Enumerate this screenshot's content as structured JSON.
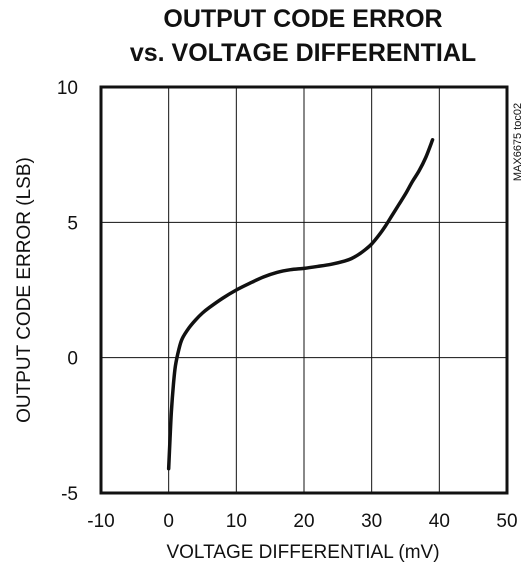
{
  "chart_data": {
    "type": "line",
    "title": [
      "OUTPUT CODE ERROR",
      "vs. VOLTAGE DIFFERENTIAL"
    ],
    "xlabel": "VOLTAGE DIFFERENTIAL (mV)",
    "ylabel": "OUTPUT CODE ERROR (LSB)",
    "xlim": [
      -10,
      50
    ],
    "ylim": [
      -5,
      10
    ],
    "xticks": [
      -10,
      0,
      10,
      20,
      30,
      40,
      50
    ],
    "yticks": [
      -5,
      0,
      5,
      10
    ],
    "grid": true,
    "legend": "none",
    "series": [
      {
        "color": "#111111",
        "x": [
          0,
          0.2,
          0.4,
          0.7,
          1,
          1.5,
          2,
          3,
          4,
          5,
          6,
          8,
          10,
          12,
          14,
          16,
          18,
          20,
          22,
          24,
          26,
          27,
          28,
          29,
          30,
          31,
          32,
          33,
          34,
          35,
          36,
          37,
          38,
          39
        ],
        "y": [
          -4.1,
          -3.0,
          -2.0,
          -1.0,
          -0.3,
          0.3,
          0.7,
          1.1,
          1.4,
          1.65,
          1.85,
          2.2,
          2.5,
          2.75,
          2.98,
          3.15,
          3.25,
          3.3,
          3.37,
          3.45,
          3.57,
          3.66,
          3.8,
          3.98,
          4.2,
          4.5,
          4.85,
          5.25,
          5.65,
          6.05,
          6.5,
          6.9,
          7.4,
          8.05
        ]
      }
    ]
  },
  "figure_code": "MAX6675 toc02"
}
